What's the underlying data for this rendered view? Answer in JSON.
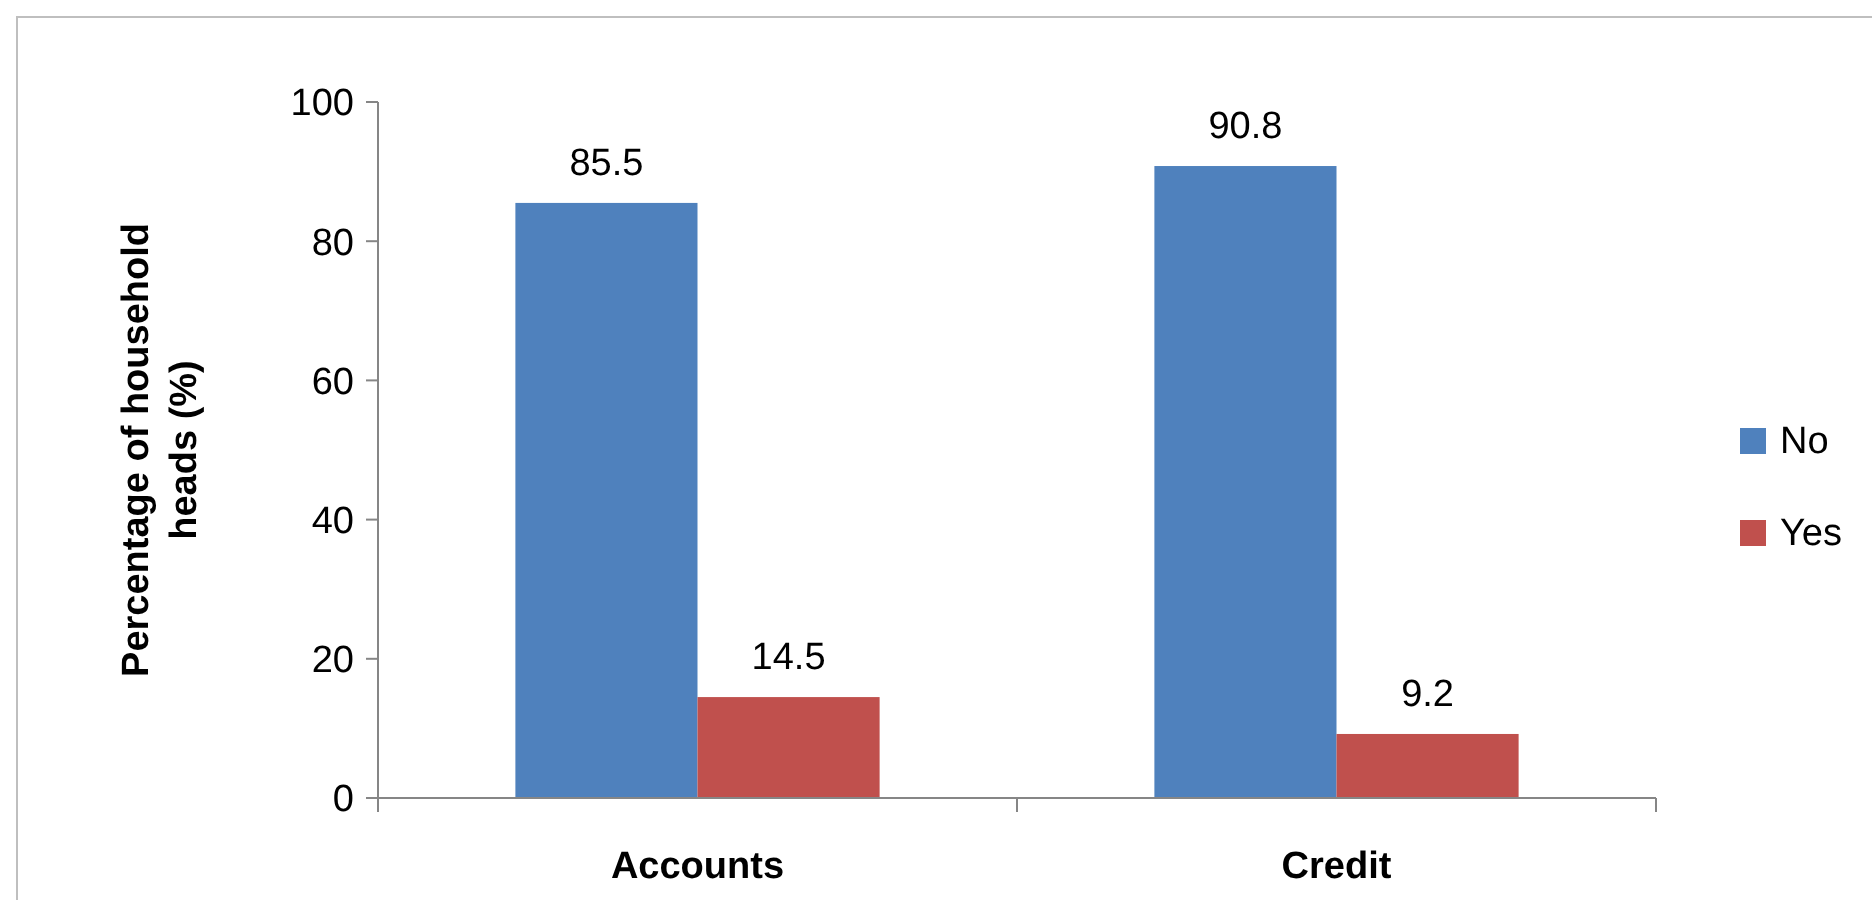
{
  "chart_data": {
    "type": "bar",
    "ylabel": "Percentage of household heads (%)",
    "categories": [
      "Accounts",
      "Credit"
    ],
    "series": [
      {
        "name": "No",
        "color": "#4f81bd",
        "values": [
          85.5,
          90.8
        ]
      },
      {
        "name": "Yes",
        "color": "#c0504d",
        "values": [
          14.5,
          9.2
        ]
      }
    ],
    "ylim": [
      0,
      100
    ],
    "yticks": [
      0,
      20,
      40,
      60,
      80,
      100
    ],
    "data_labels": true,
    "legend": "right",
    "grid": false
  }
}
